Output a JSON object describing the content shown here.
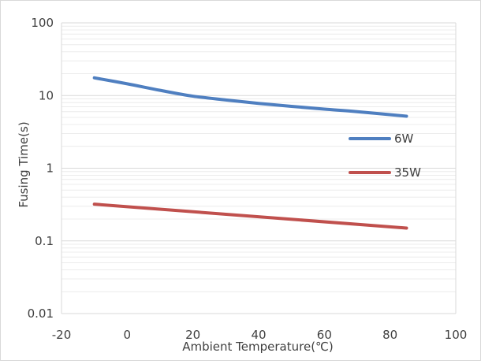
{
  "chart_data": {
    "type": "line",
    "title": "",
    "xlabel": "Ambient Temperature(℃)",
    "ylabel": "Fusing Time(s)",
    "xlim": [
      -20,
      100
    ],
    "ylim": [
      0.01,
      100
    ],
    "y_scale": "log",
    "grid": "horizontal major and minor",
    "legend_position": "right",
    "x_ticks": [
      "-20",
      "0",
      "20",
      "40",
      "60",
      "80",
      "100"
    ],
    "y_ticks": [
      "100",
      "10",
      "1",
      "0.1",
      "0.01"
    ],
    "x_tick_values": [
      -20,
      0,
      20,
      40,
      60,
      80,
      100
    ],
    "y_tick_values": [
      100,
      10,
      1,
      0.1,
      0.01
    ],
    "series": [
      {
        "name": "6W",
        "color": "#4f7fc0",
        "x": [
          -10,
          0,
          10,
          20,
          30,
          40,
          50,
          60,
          70,
          85
        ],
        "y": [
          17.5,
          14.5,
          11.8,
          9.8,
          8.7,
          7.8,
          7.1,
          6.5,
          6.0,
          5.2
        ]
      },
      {
        "name": "35W",
        "color": "#c0504d",
        "x": [
          -10,
          85
        ],
        "y": [
          0.32,
          0.15
        ]
      }
    ]
  }
}
